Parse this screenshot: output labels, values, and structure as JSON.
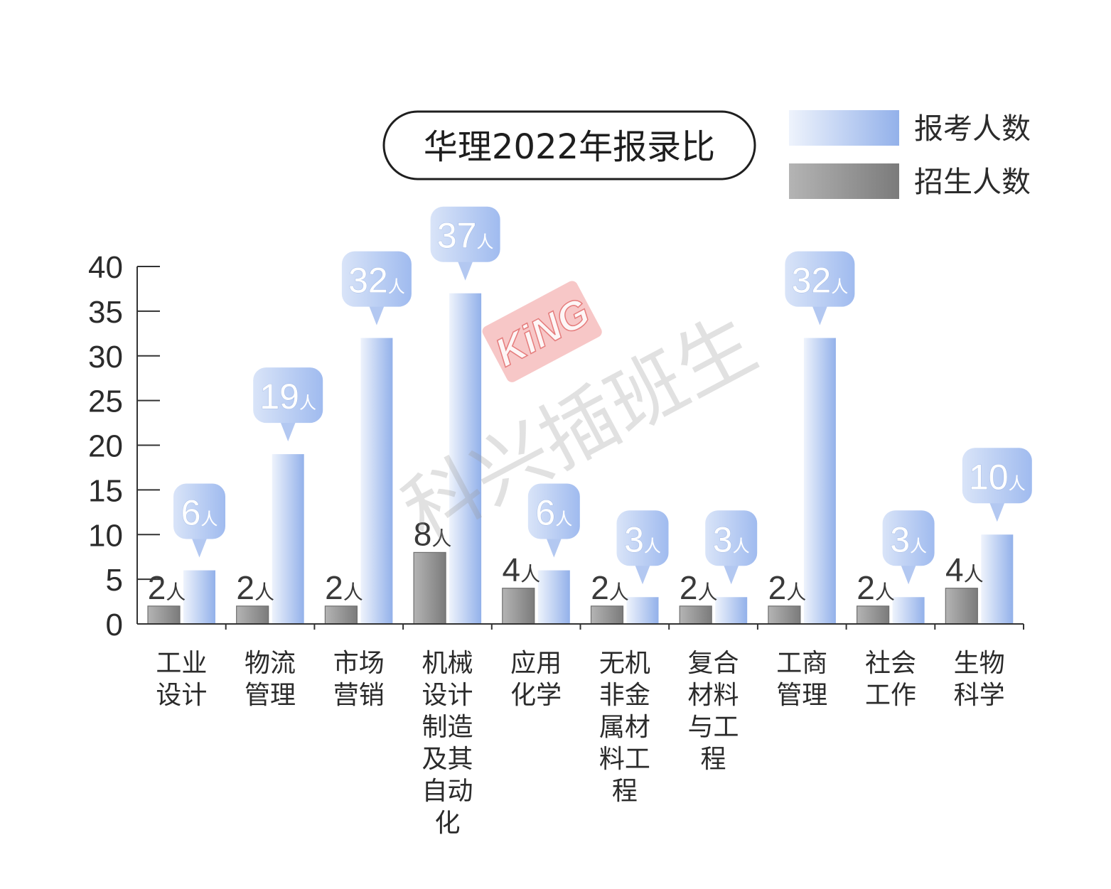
{
  "chart_data": {
    "type": "bar",
    "title": "华理2022年报录比",
    "categories": [
      "工业设计",
      "物流管理",
      "市场营销",
      "机械设计制造及其自动化",
      "应用化学",
      "无机非金属材料工程",
      "复合材料与工程",
      "工商管理",
      "社会工作",
      "生物科学"
    ],
    "series": [
      {
        "name": "招生人数",
        "values": [
          2,
          2,
          2,
          8,
          4,
          2,
          2,
          2,
          2,
          4
        ],
        "color_light": "#b4b4b4",
        "color_dark": "#7b7b7b"
      },
      {
        "name": "报考人数",
        "values": [
          6,
          19,
          32,
          37,
          6,
          3,
          3,
          32,
          3,
          10
        ],
        "color_light": "#eef3fc",
        "color_dark": "#93b1ea",
        "callout_colors": [
          "#d9e4f8",
          "#a0bbef"
        ]
      }
    ],
    "value_suffix": "人",
    "ylim": [
      0,
      40
    ],
    "yticks": [
      0,
      5,
      10,
      15,
      20,
      25,
      30,
      35,
      40
    ],
    "legend_position": "top-right",
    "grid": false
  },
  "watermark": {
    "text": "科兴插班生",
    "logo_text": "KiNG",
    "logo_color": "#ef8f8f"
  }
}
